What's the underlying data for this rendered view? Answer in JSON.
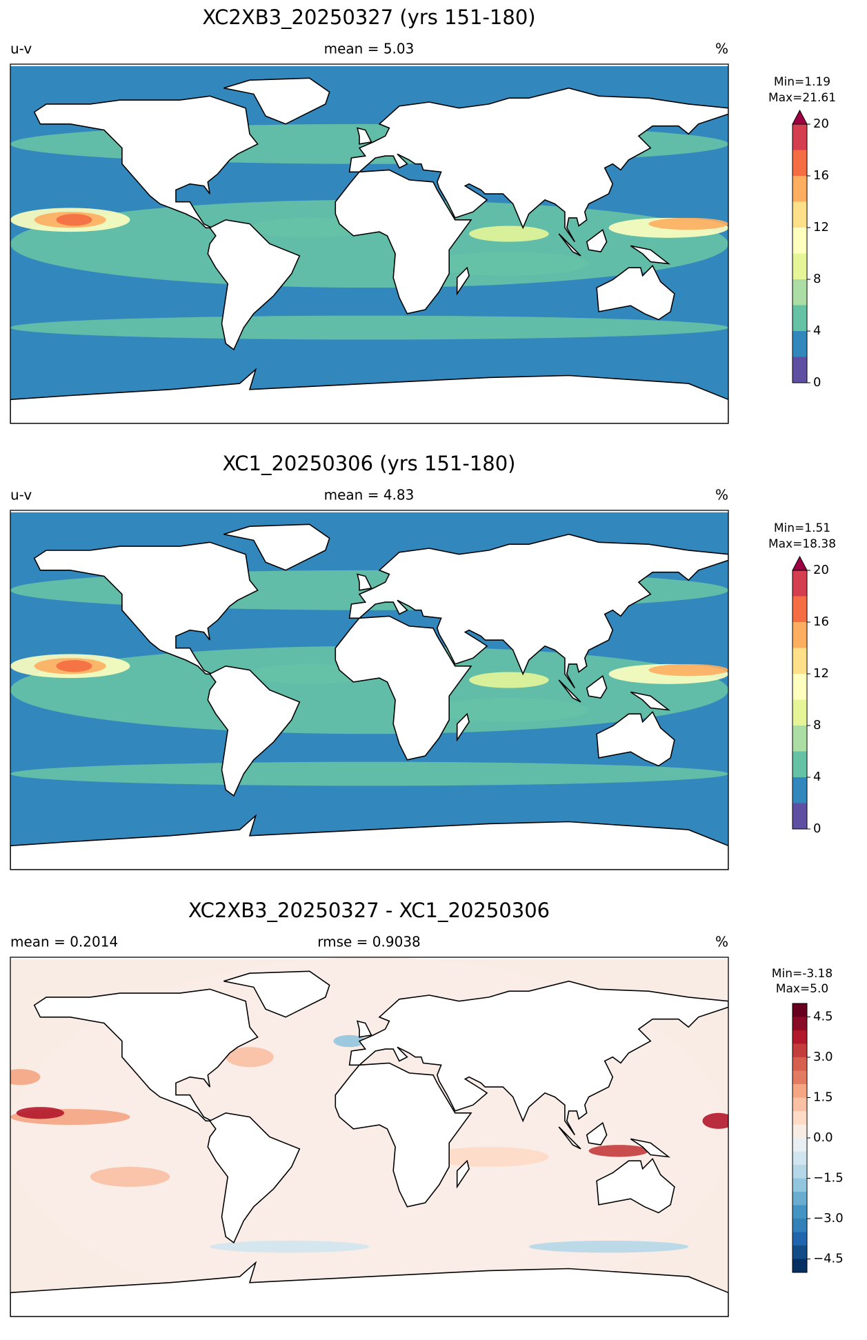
{
  "chart_data": [
    {
      "type": "map",
      "title": "XC2XB3_20250327 (yrs 151-180)",
      "left_label": "u-v",
      "center_label": "mean = 5.03",
      "right_label": "%",
      "min_label": "Min=1.19",
      "max_label": "Max=21.61",
      "levels": [
        0,
        2,
        4,
        6,
        8,
        10,
        12,
        14,
        16,
        18,
        20
      ],
      "colors": [
        "#5e4fa2",
        "#3288bd",
        "#66c2a5",
        "#abdda4",
        "#e6f598",
        "#ffffbf",
        "#fee08b",
        "#fdae61",
        "#f46d43",
        "#d53e4f"
      ],
      "extend_color": "#9e0142",
      "yticks": [
        0,
        4,
        8,
        12,
        16,
        20
      ]
    },
    {
      "type": "map",
      "title": "XC1_20250306 (yrs 151-180)",
      "left_label": "u-v",
      "center_label": "mean = 4.83",
      "right_label": "%",
      "min_label": "Min=1.51",
      "max_label": "Max=18.38",
      "levels": [
        0,
        2,
        4,
        6,
        8,
        10,
        12,
        14,
        16,
        18,
        20
      ],
      "colors": [
        "#5e4fa2",
        "#3288bd",
        "#66c2a5",
        "#abdda4",
        "#e6f598",
        "#ffffbf",
        "#fee08b",
        "#fdae61",
        "#f46d43",
        "#d53e4f"
      ],
      "extend_color": "#9e0142",
      "yticks": [
        0,
        4,
        8,
        12,
        16,
        20
      ]
    },
    {
      "type": "map",
      "title": "XC2XB3_20250327 - XC1_20250306",
      "left_label": "mean = 0.2014",
      "center_label": "rmse = 0.9038",
      "right_label": "%",
      "min_label": "Min=-3.18",
      "max_label": "Max=5.0",
      "levels": [
        -5,
        -4.5,
        -4,
        -3.5,
        -3,
        -2.5,
        -2,
        -1.5,
        -1,
        -0.5,
        0,
        0.5,
        1,
        1.5,
        2,
        2.5,
        3,
        3.5,
        4,
        4.5,
        5
      ],
      "colors": [
        "#053061",
        "#134c87",
        "#2166ac",
        "#3480b9",
        "#4393c3",
        "#6bacd1",
        "#92c5de",
        "#b5d7e8",
        "#d1e5f0",
        "#e8f0f4",
        "#f9ece5",
        "#fddbc7",
        "#f9c0a3",
        "#f4a582",
        "#e27b62",
        "#d6604d",
        "#c43c3c",
        "#b2182b",
        "#8a0b25",
        "#67001f"
      ],
      "yticks": [
        {
          "value": -4.5,
          "label": "−4.5"
        },
        {
          "value": -3,
          "label": "−3.0"
        },
        {
          "value": -1.5,
          "label": "−1.5"
        },
        {
          "value": 0,
          "label": "0.0"
        },
        1.5,
        {
          "value": 3,
          "label": "3.0"
        },
        4.5
      ]
    }
  ]
}
